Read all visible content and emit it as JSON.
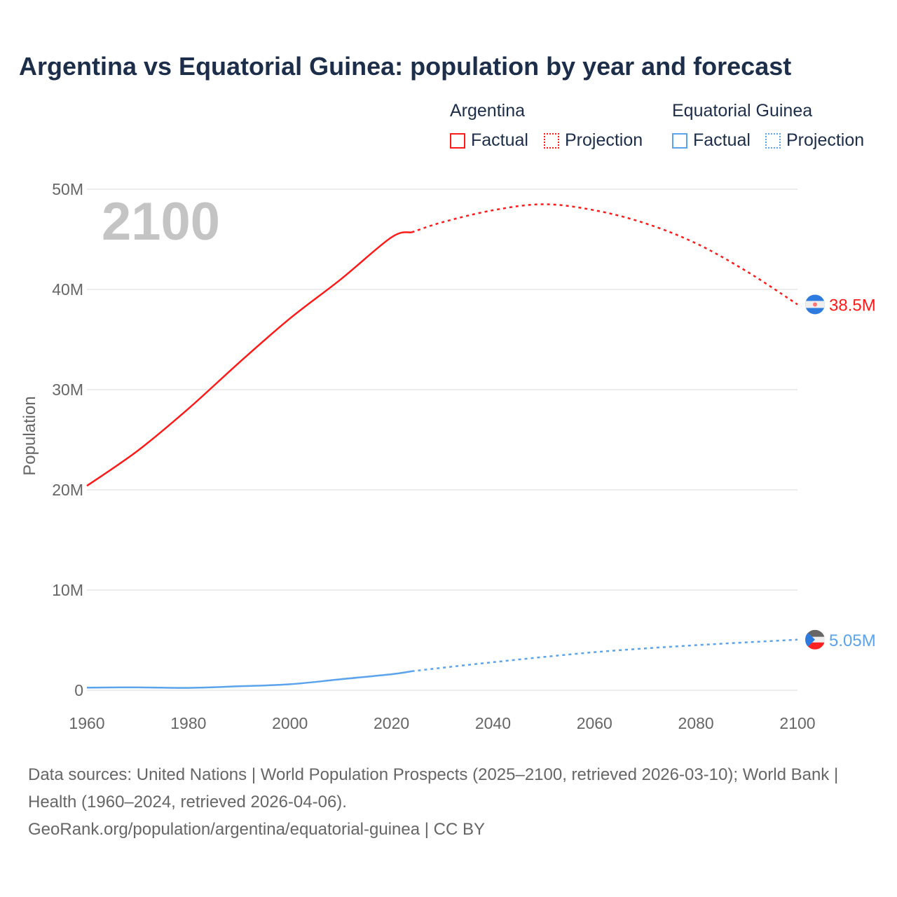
{
  "title": "Argentina vs Equatorial Guinea: population by year and forecast",
  "legend": {
    "groups": [
      {
        "name": "Argentina",
        "factual": "Factual",
        "projection": "Projection",
        "color": "#ff1a1a"
      },
      {
        "name": "Equatorial Guinea",
        "factual": "Factual",
        "projection": "Projection",
        "color": "#5ba3ec"
      }
    ]
  },
  "year_watermark": "2100",
  "footer": {
    "sources": "Data sources: United Nations | World Population Prospects (2025–2100, retrieved 2026-03-10); World Bank | Health (1960–2024, retrieved 2026-04-06).",
    "url": "GeoRank.org/population/argentina/equatorial-guinea | CC BY"
  },
  "chart_data": {
    "type": "line",
    "title": "Argentina vs Equatorial Guinea: population by year and forecast",
    "xlabel": "",
    "ylabel": "Population",
    "xlim": [
      1960,
      2100
    ],
    "ylim": [
      0,
      50000000
    ],
    "x_ticks": [
      "1960",
      "1980",
      "2000",
      "2020",
      "2040",
      "2060",
      "2080",
      "2100"
    ],
    "y_ticks": [
      {
        "v": 0,
        "label": "0"
      },
      {
        "v": 10000000,
        "label": "10M"
      },
      {
        "v": 20000000,
        "label": "20M"
      },
      {
        "v": 30000000,
        "label": "30M"
      },
      {
        "v": 40000000,
        "label": "40M"
      },
      {
        "v": 50000000,
        "label": "50M"
      }
    ],
    "grid": true,
    "projection_start": 2024,
    "series": [
      {
        "name": "Argentina",
        "color": "#ff1a1a",
        "end_label": "38.5M",
        "x": [
          1960,
          1970,
          1980,
          1990,
          2000,
          2010,
          2020,
          2024,
          2030,
          2040,
          2050,
          2060,
          2070,
          2080,
          2090,
          2100
        ],
        "values": [
          20400000,
          23900000,
          28100000,
          32700000,
          37100000,
          41000000,
          45200000,
          45700000,
          46700000,
          47900000,
          48500000,
          47900000,
          46600000,
          44600000,
          41800000,
          38500000
        ]
      },
      {
        "name": "Equatorial Guinea",
        "color": "#5ba3ec",
        "end_label": "5.05M",
        "x": [
          1960,
          1970,
          1980,
          1990,
          2000,
          2010,
          2020,
          2024,
          2040,
          2060,
          2080,
          2100
        ],
        "values": [
          260000,
          290000,
          240000,
          400000,
          600000,
          1100000,
          1600000,
          1900000,
          2800000,
          3800000,
          4500000,
          5050000
        ]
      }
    ]
  }
}
